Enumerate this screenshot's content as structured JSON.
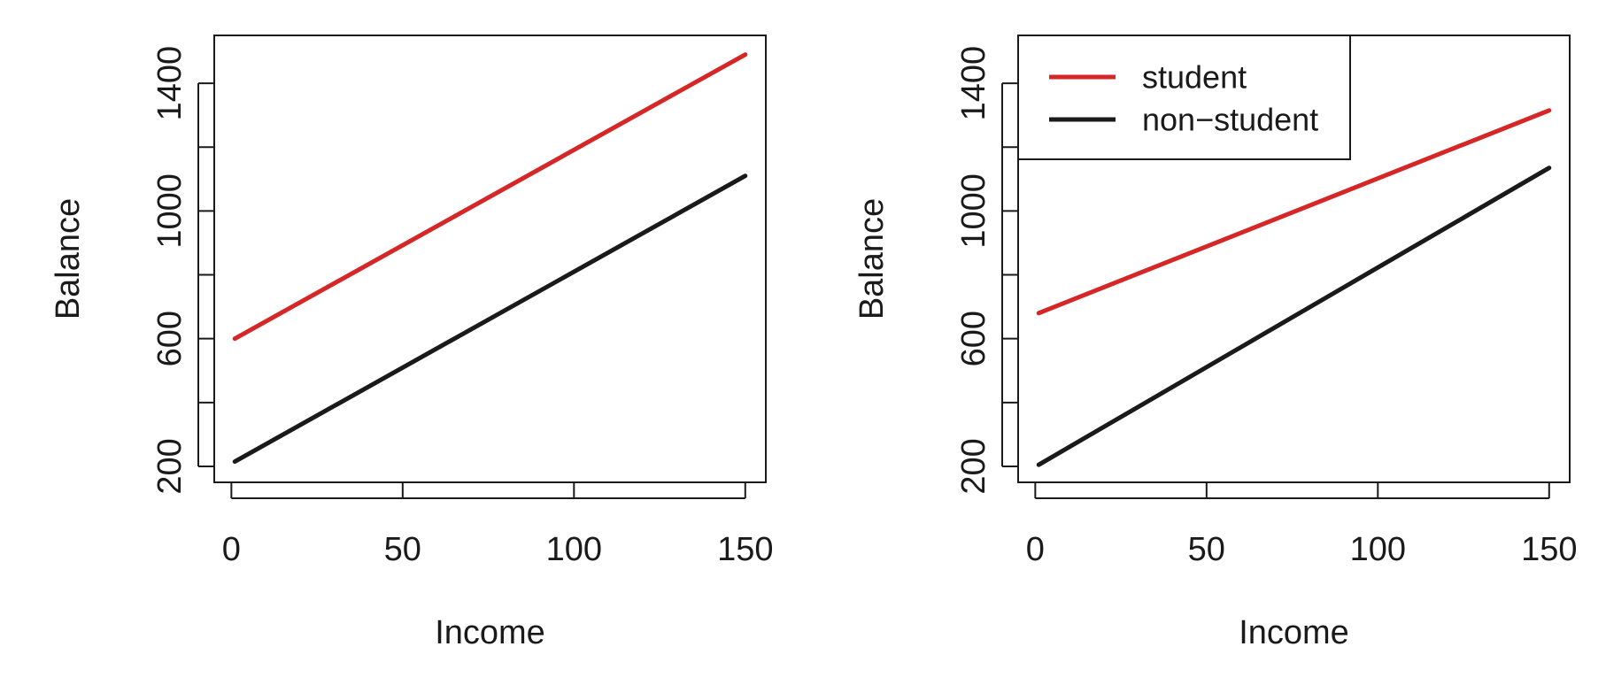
{
  "chart_data": [
    {
      "type": "line",
      "xlabel": "Income",
      "ylabel": "Balance",
      "xlim": [
        -5,
        156
      ],
      "ylim": [
        150,
        1550
      ],
      "xticks": [
        0,
        50,
        100,
        150
      ],
      "xtick_labels": [
        "0",
        "50",
        "100",
        "150"
      ],
      "yticks": [
        200,
        400,
        600,
        800,
        1000,
        1200,
        1400
      ],
      "ytick_labels": [
        "200",
        "",
        "600",
        "",
        "1000",
        "",
        "1400"
      ],
      "grid": false,
      "legend": null,
      "series": [
        {
          "key": "student",
          "color": "#d62728",
          "x": [
            1,
            150
          ],
          "y": [
            600,
            1490
          ]
        },
        {
          "key": "non-student",
          "color": "#1a1a1a",
          "x": [
            1,
            150
          ],
          "y": [
            215,
            1110
          ]
        }
      ]
    },
    {
      "type": "line",
      "xlabel": "Income",
      "ylabel": "Balance",
      "xlim": [
        -5,
        156
      ],
      "ylim": [
        150,
        1550
      ],
      "xticks": [
        0,
        50,
        100,
        150
      ],
      "xtick_labels": [
        "0",
        "50",
        "100",
        "150"
      ],
      "yticks": [
        200,
        400,
        600,
        800,
        1000,
        1200,
        1400
      ],
      "ytick_labels": [
        "200",
        "",
        "600",
        "",
        "1000",
        "",
        "1400"
      ],
      "grid": false,
      "legend": {
        "placement": "top-left",
        "entries": [
          {
            "label": "student",
            "color": "#d62728"
          },
          {
            "label": "non−student",
            "color": "#1a1a1a"
          }
        ]
      },
      "series": [
        {
          "key": "student",
          "color": "#d62728",
          "x": [
            1,
            150
          ],
          "y": [
            680,
            1315
          ]
        },
        {
          "key": "non-student",
          "color": "#1a1a1a",
          "x": [
            1,
            150
          ],
          "y": [
            205,
            1135
          ]
        }
      ]
    }
  ]
}
